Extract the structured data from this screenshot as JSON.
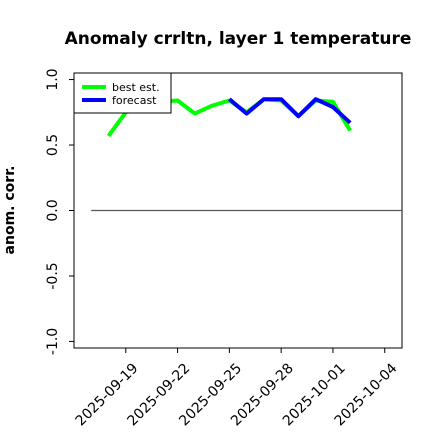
{
  "chart_data": {
    "type": "line",
    "title": "Anomaly crrltn, layer 1 temperature",
    "ylabel": "anom. corr.",
    "xlabel": "",
    "ylim": [
      -1.05,
      1.05
    ],
    "yticks": [
      -1.0,
      -0.5,
      0.0,
      0.5,
      1.0
    ],
    "ytick_labels": [
      "-1.0",
      "-0.5",
      "0.0",
      "0.5",
      "1.0"
    ],
    "xlim": [
      "2025-09-16",
      "2025-10-05"
    ],
    "xticks": [
      "2025-09-19",
      "2025-09-22",
      "2025-09-25",
      "2025-09-28",
      "2025-10-01",
      "2025-10-04"
    ],
    "xtick_colors": [
      "#000000",
      "#000000",
      "#1a7a1a",
      "#000000",
      "#000000",
      "#000000"
    ],
    "grid": false,
    "legend_position": "top-left",
    "reference_line": 0.0,
    "reference_line_range": [
      "2025-09-17",
      "2025-10-05"
    ],
    "series": [
      {
        "name": "best est.",
        "color": "#00ff00",
        "x": [
          "2025-09-18",
          "2025-09-19",
          "2025-09-20",
          "2025-09-21",
          "2025-09-22",
          "2025-09-23",
          "2025-09-24",
          "2025-09-25",
          "2025-09-26",
          "2025-09-27",
          "2025-09-28",
          "2025-09-29",
          "2025-09-30",
          "2025-10-01",
          "2025-10-02"
        ],
        "values": [
          0.57,
          0.75,
          0.8,
          0.83,
          0.84,
          0.74,
          0.8,
          0.84,
          0.75,
          0.85,
          0.84,
          0.72,
          0.84,
          0.83,
          0.61
        ]
      },
      {
        "name": "forecast",
        "color": "#0000ff",
        "x": [
          "2025-09-25",
          "2025-09-26",
          "2025-09-27",
          "2025-09-28",
          "2025-09-29",
          "2025-09-30",
          "2025-10-01",
          "2025-10-02"
        ],
        "values": [
          0.85,
          0.74,
          0.85,
          0.85,
          0.72,
          0.85,
          0.79,
          0.67
        ]
      }
    ]
  }
}
